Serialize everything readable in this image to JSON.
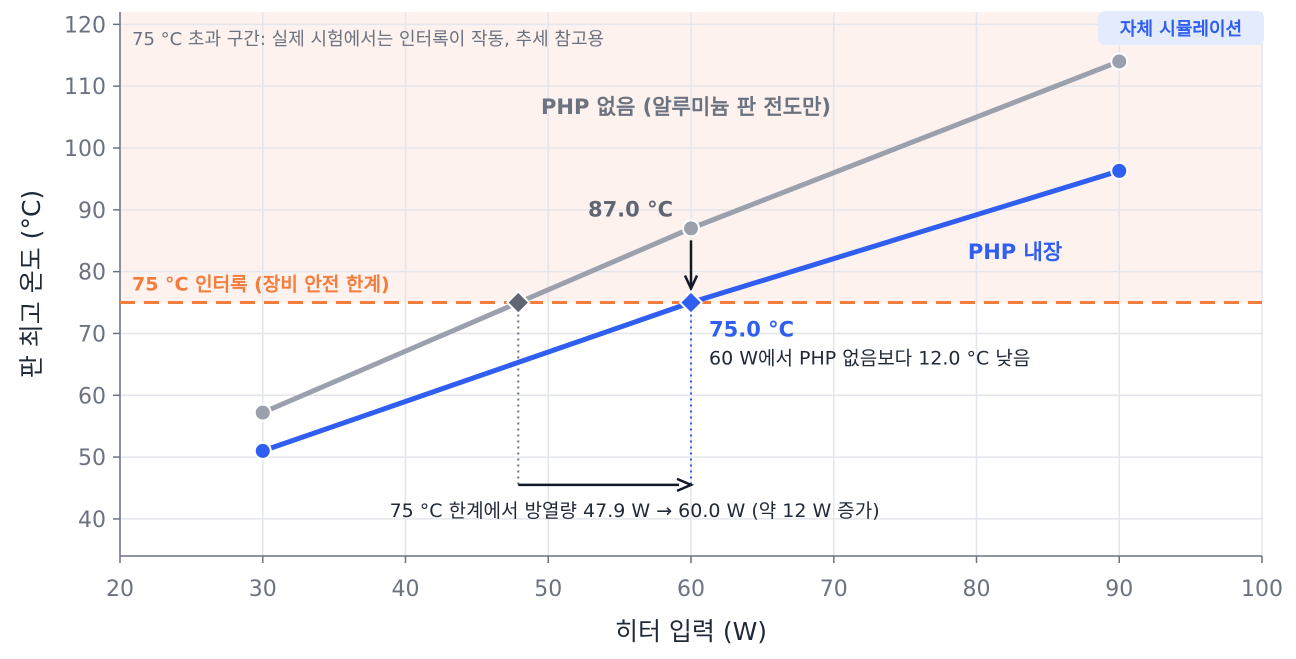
{
  "chart_data": {
    "type": "line",
    "xlabel": "히터 입력 (W)",
    "ylabel": "판 최고 온도 (°C)",
    "xlim": [
      20,
      100
    ],
    "ylim": [
      34,
      122
    ],
    "xticks": [
      20,
      30,
      40,
      50,
      60,
      70,
      80,
      90,
      100
    ],
    "yticks": [
      40,
      50,
      60,
      70,
      80,
      90,
      100,
      110,
      120
    ],
    "grid": true,
    "badge": "자체 시뮬레이션",
    "series": [
      {
        "name": "PHP 없음 (알루미늄 판 전도만)",
        "color": "#9aa1ad",
        "x": [
          30,
          60,
          90
        ],
        "y": [
          57.2,
          87.0,
          114.0
        ]
      },
      {
        "name": "PHP 내장",
        "color": "#2f5ef0",
        "x": [
          30,
          60,
          90
        ],
        "y": [
          51.0,
          75.0,
          96.3
        ]
      }
    ],
    "threshold": {
      "value": 75,
      "label": "75 °C 인터록 (장비 안전 한계)",
      "color": "#f47c3c"
    },
    "shaded_note": "75 °C 초과 구간: 실제 시험에서는 인터록이 작동, 추세 참고용",
    "annotations": {
      "no_php_at_60": {
        "x": 60,
        "y": 87.0,
        "label": "87.0 °C"
      },
      "php_at_60": {
        "x": 60,
        "y": 75.0,
        "label": "75.0 °C",
        "sublabel": "60 W에서 PHP 없음보다 12.0 °C 낮음"
      },
      "no_php_limit": {
        "x": 47.9,
        "y": 75.0
      },
      "gain": {
        "from": 47.9,
        "to": 60.0,
        "arrow_y": 45.5,
        "label": "75 °C 한계에서 방열량 47.9 W → 60.0 W (약 12 W 증가)"
      }
    }
  }
}
